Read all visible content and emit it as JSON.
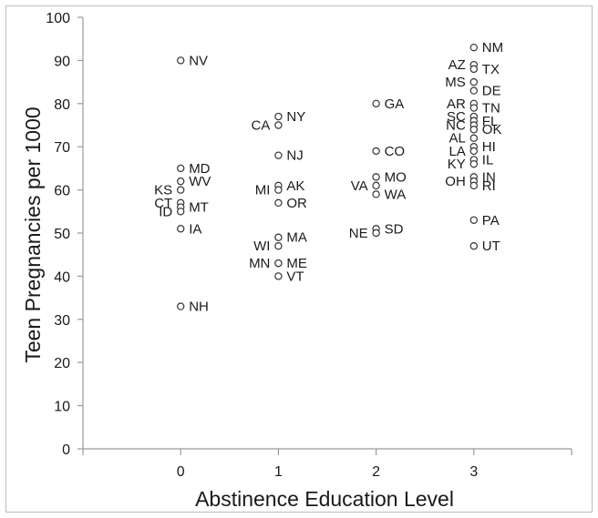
{
  "chart_data": {
    "type": "scatter",
    "title": "",
    "xlabel": "Abstinence Education Level",
    "ylabel": "Teen Pregnancies per 1000",
    "xlim": [
      -1,
      4
    ],
    "ylim": [
      0,
      100
    ],
    "x_ticks": [
      "0",
      "1",
      "2",
      "3"
    ],
    "y_ticks": [
      "0",
      "10",
      "20",
      "30",
      "40",
      "50",
      "60",
      "70",
      "80",
      "90",
      "100"
    ],
    "grid": false,
    "legend": "none",
    "marker_color": "#333333",
    "axis_color": "#999999",
    "points": [
      {
        "label": "NV",
        "x": 0,
        "y": 90,
        "side": "right"
      },
      {
        "label": "MD",
        "x": 0,
        "y": 65,
        "side": "right"
      },
      {
        "label": "WV",
        "x": 0,
        "y": 62,
        "side": "right"
      },
      {
        "label": "KS",
        "x": 0,
        "y": 60,
        "side": "left"
      },
      {
        "label": "CT",
        "x": 0,
        "y": 57,
        "side": "left"
      },
      {
        "label": "MT",
        "x": 0,
        "y": 56,
        "side": "right"
      },
      {
        "label": "ID",
        "x": 0,
        "y": 55,
        "side": "left"
      },
      {
        "label": "IA",
        "x": 0,
        "y": 51,
        "side": "right"
      },
      {
        "label": "NH",
        "x": 0,
        "y": 33,
        "side": "right"
      },
      {
        "label": "NY",
        "x": 1,
        "y": 77,
        "side": "right"
      },
      {
        "label": "CA",
        "x": 1,
        "y": 75,
        "side": "left"
      },
      {
        "label": "NJ",
        "x": 1,
        "y": 68,
        "side": "right"
      },
      {
        "label": "AK",
        "x": 1,
        "y": 61,
        "side": "right"
      },
      {
        "label": "MI",
        "x": 1,
        "y": 60,
        "side": "left"
      },
      {
        "label": "OR",
        "x": 1,
        "y": 57,
        "side": "right"
      },
      {
        "label": "MA",
        "x": 1,
        "y": 49,
        "side": "right"
      },
      {
        "label": "WI",
        "x": 1,
        "y": 47,
        "side": "left"
      },
      {
        "label": "ME",
        "x": 1,
        "y": 43,
        "side": "right"
      },
      {
        "label": "MN",
        "x": 1,
        "y": 43,
        "side": "left"
      },
      {
        "label": "VT",
        "x": 1,
        "y": 40,
        "side": "right"
      },
      {
        "label": "GA",
        "x": 2,
        "y": 80,
        "side": "right"
      },
      {
        "label": "CO",
        "x": 2,
        "y": 69,
        "side": "right"
      },
      {
        "label": "MO",
        "x": 2,
        "y": 63,
        "side": "right"
      },
      {
        "label": "VA",
        "x": 2,
        "y": 61,
        "side": "left"
      },
      {
        "label": "WA",
        "x": 2,
        "y": 59,
        "side": "right"
      },
      {
        "label": "SD",
        "x": 2,
        "y": 51,
        "side": "right"
      },
      {
        "label": "NE",
        "x": 2,
        "y": 50,
        "side": "left"
      },
      {
        "label": "NM",
        "x": 3,
        "y": 93,
        "side": "right"
      },
      {
        "label": "AZ",
        "x": 3,
        "y": 89,
        "side": "left"
      },
      {
        "label": "TX",
        "x": 3,
        "y": 88,
        "side": "right"
      },
      {
        "label": "MS",
        "x": 3,
        "y": 85,
        "side": "left"
      },
      {
        "label": "DE",
        "x": 3,
        "y": 83,
        "side": "right"
      },
      {
        "label": "AR",
        "x": 3,
        "y": 80,
        "side": "left"
      },
      {
        "label": "TN",
        "x": 3,
        "y": 79,
        "side": "right"
      },
      {
        "label": "SC",
        "x": 3,
        "y": 77,
        "side": "left"
      },
      {
        "label": "FL",
        "x": 3,
        "y": 76,
        "side": "right"
      },
      {
        "label": "NC",
        "x": 3,
        "y": 75,
        "side": "left"
      },
      {
        "label": "OK",
        "x": 3,
        "y": 74,
        "side": "right"
      },
      {
        "label": "AL",
        "x": 3,
        "y": 72,
        "side": "left"
      },
      {
        "label": "HI",
        "x": 3,
        "y": 70,
        "side": "right"
      },
      {
        "label": "LA",
        "x": 3,
        "y": 69,
        "side": "left"
      },
      {
        "label": "IL",
        "x": 3,
        "y": 67,
        "side": "right"
      },
      {
        "label": "KY",
        "x": 3,
        "y": 66,
        "side": "left"
      },
      {
        "label": "IN",
        "x": 3,
        "y": 63,
        "side": "right"
      },
      {
        "label": "OH",
        "x": 3,
        "y": 62,
        "side": "left"
      },
      {
        "label": "RI",
        "x": 3,
        "y": 61,
        "side": "right"
      },
      {
        "label": "PA",
        "x": 3,
        "y": 53,
        "side": "right"
      },
      {
        "label": "UT",
        "x": 3,
        "y": 47,
        "side": "right"
      }
    ]
  }
}
